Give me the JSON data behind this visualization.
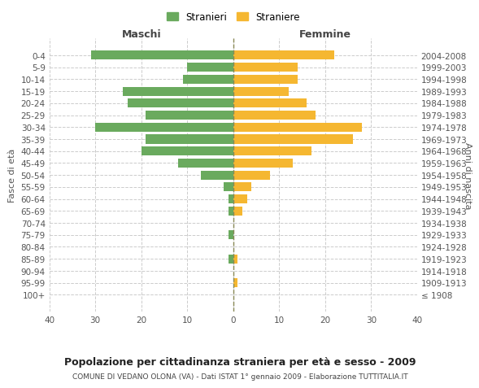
{
  "age_groups": [
    "100+",
    "95-99",
    "90-94",
    "85-89",
    "80-84",
    "75-79",
    "70-74",
    "65-69",
    "60-64",
    "55-59",
    "50-54",
    "45-49",
    "40-44",
    "35-39",
    "30-34",
    "25-29",
    "20-24",
    "15-19",
    "10-14",
    "5-9",
    "0-4"
  ],
  "birth_years": [
    "≤ 1908",
    "1909-1913",
    "1914-1918",
    "1919-1923",
    "1924-1928",
    "1929-1933",
    "1934-1938",
    "1939-1943",
    "1944-1948",
    "1949-1953",
    "1954-1958",
    "1959-1963",
    "1964-1968",
    "1969-1973",
    "1974-1978",
    "1979-1983",
    "1984-1988",
    "1989-1993",
    "1994-1998",
    "1999-2003",
    "2004-2008"
  ],
  "maschi": [
    0,
    0,
    0,
    1,
    0,
    1,
    0,
    1,
    1,
    2,
    7,
    12,
    20,
    19,
    30,
    19,
    23,
    24,
    11,
    10,
    31
  ],
  "femmine": [
    0,
    1,
    0,
    1,
    0,
    0,
    0,
    2,
    3,
    4,
    8,
    13,
    17,
    26,
    28,
    18,
    16,
    12,
    14,
    14,
    22
  ],
  "male_color": "#6aaa5e",
  "female_color": "#f5b731",
  "dashed_line_color": "#888855",
  "grid_color": "#cccccc",
  "title": "Popolazione per cittadinanza straniera per età e sesso - 2009",
  "subtitle": "COMUNE DI VEDANO OLONA (VA) - Dati ISTAT 1° gennaio 2009 - Elaborazione TUTTITALIA.IT",
  "xlabel_left": "Maschi",
  "xlabel_right": "Femmine",
  "ylabel_left": "Fasce di età",
  "ylabel_right": "Anni di nascita",
  "legend_stranieri": "Stranieri",
  "legend_straniere": "Straniere",
  "xlim": 40,
  "background_color": "#ffffff",
  "bar_height": 0.75
}
